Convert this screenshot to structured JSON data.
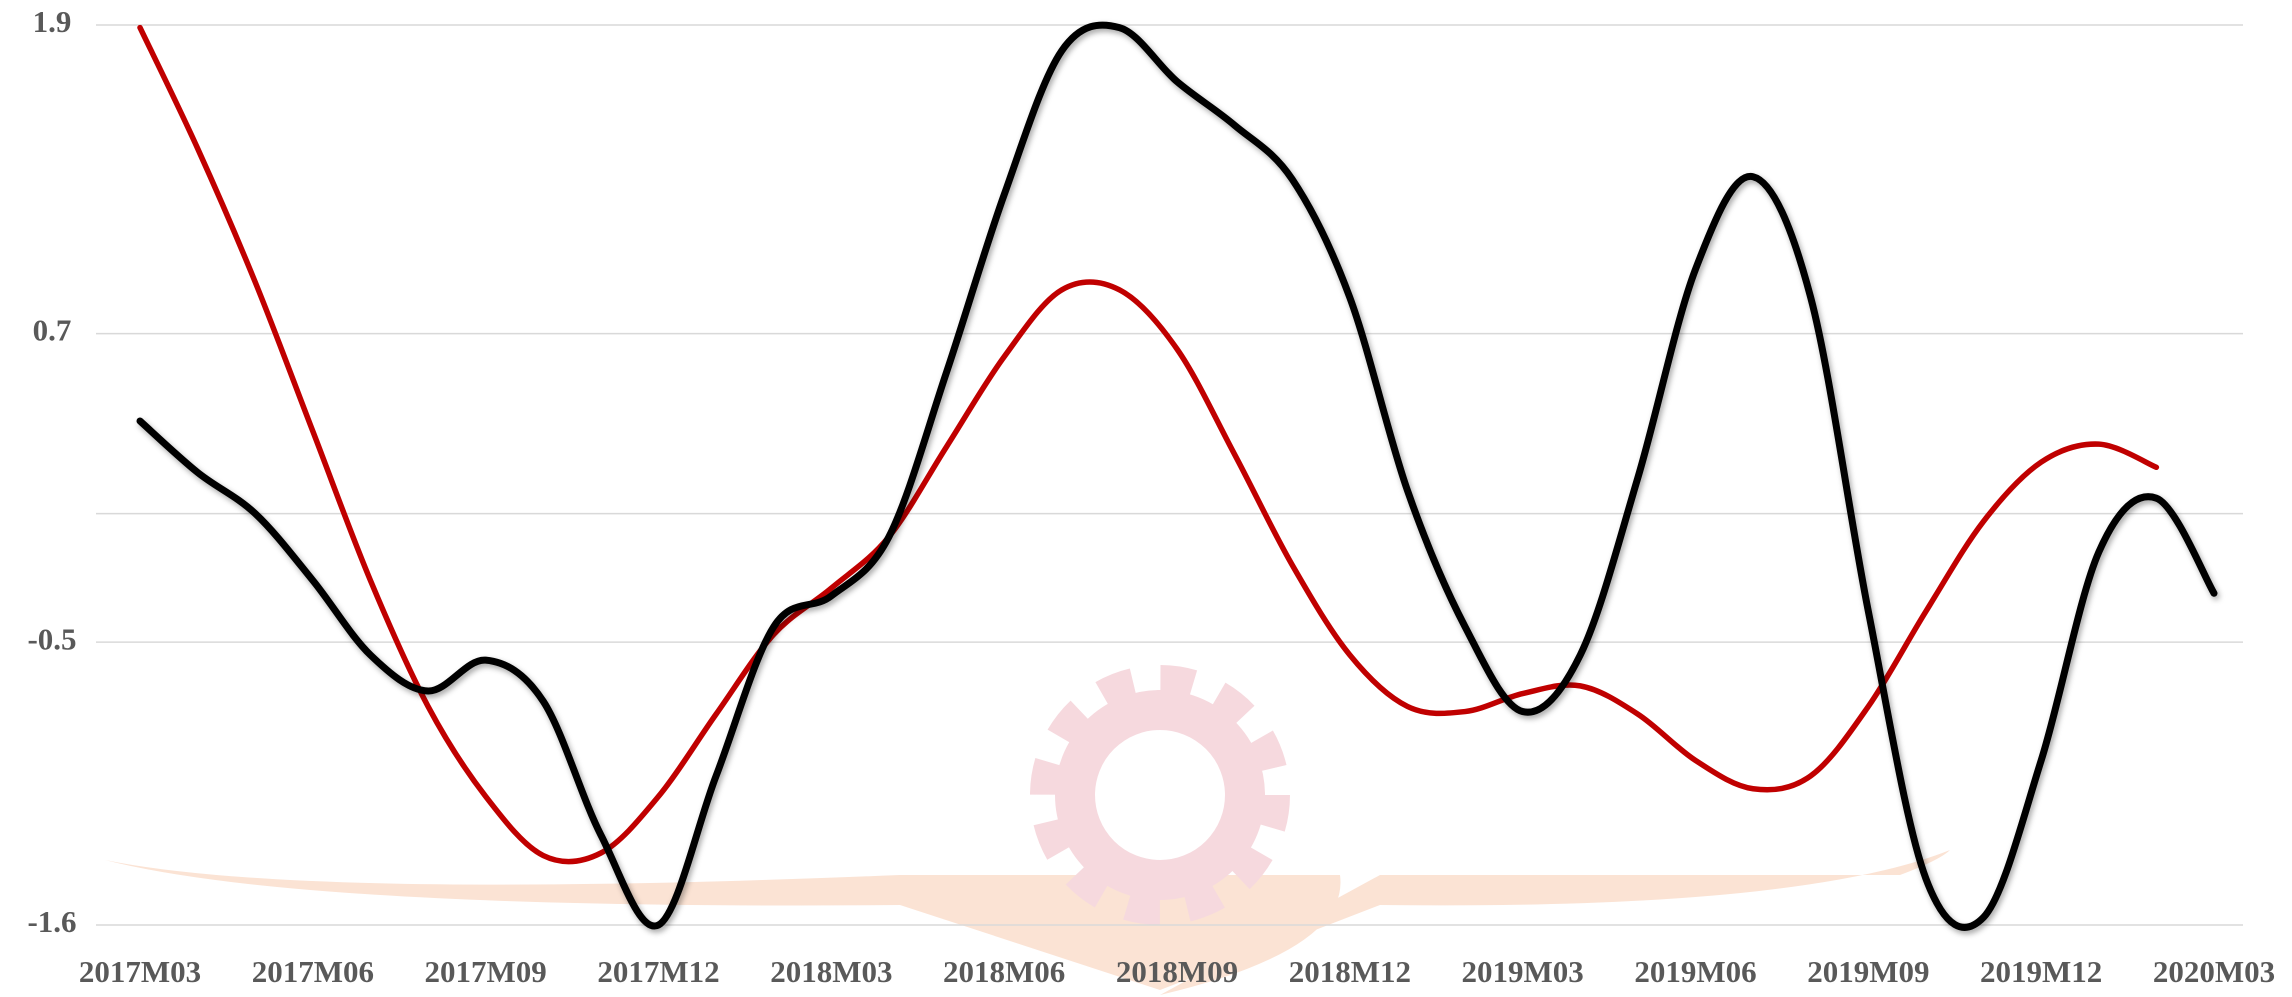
{
  "chart_data": {
    "type": "line",
    "categories": [
      "2017M03",
      null,
      null,
      "2017M06",
      null,
      null,
      "2017M09",
      null,
      null,
      "2017M12",
      null,
      null,
      "2018M03",
      null,
      null,
      "2018M06",
      null,
      null,
      "2018M09",
      null,
      null,
      "2018M12",
      null,
      null,
      "2019M03",
      null,
      null,
      "2019M06",
      null,
      null,
      "2019M09",
      null,
      null,
      "2019M12",
      null,
      null,
      "2020M03"
    ],
    "series": [
      {
        "color": "#c00000",
        "values": [
          1.89,
          1.42,
          0.9,
          0.32,
          -0.26,
          -0.75,
          -1.1,
          -1.33,
          -1.32,
          -1.1,
          -0.78,
          -0.47,
          -0.29,
          -0.09,
          0.26,
          0.61,
          0.87,
          0.87,
          0.64,
          0.23,
          -0.2,
          -0.55,
          -0.75,
          -0.77,
          -0.7,
          -0.67,
          -0.78,
          -0.96,
          -1.07,
          -1.02,
          -0.75,
          -0.38,
          -0.03,
          0.2,
          0.27,
          0.18,
          null
        ]
      },
      {
        "color": "#000000",
        "values": [
          0.36,
          0.16,
          0.0,
          -0.26,
          -0.55,
          -0.69,
          -0.57,
          -0.73,
          -1.25,
          -1.6,
          -1.02,
          -0.44,
          -0.32,
          -0.09,
          0.55,
          1.24,
          1.8,
          1.89,
          1.68,
          1.51,
          1.3,
          0.84,
          0.09,
          -0.44,
          -0.77,
          -0.55,
          0.14,
          0.95,
          1.31,
          0.84,
          -0.38,
          -1.42,
          -1.57,
          -0.96,
          -0.15,
          0.06,
          -0.31
        ]
      }
    ],
    "ylim": [
      -1.6,
      1.9
    ],
    "yticks": [
      -1.6,
      -0.5,
      0.7,
      1.9
    ],
    "extra_gridlines": [
      0
    ],
    "grid": true
  }
}
